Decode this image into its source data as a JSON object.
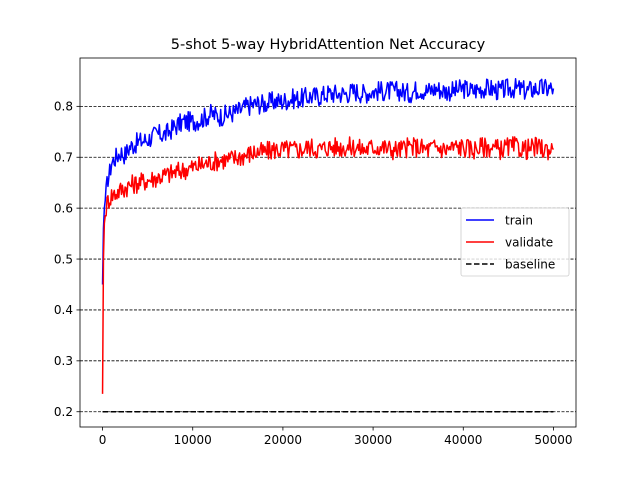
{
  "chart_data": {
    "type": "line",
    "title": "5-shot 5-way HybridAttention Net Accuracy",
    "xlabel": "",
    "ylabel": "",
    "xlim": [
      -2500,
      52500
    ],
    "ylim": [
      0.17,
      0.895
    ],
    "x_ticks": [
      0,
      10000,
      20000,
      30000,
      40000,
      50000
    ],
    "x_tick_labels": [
      "0",
      "10000",
      "20000",
      "30000",
      "40000",
      "50000"
    ],
    "y_ticks": [
      0.2,
      0.3,
      0.4,
      0.5,
      0.6,
      0.7,
      0.8
    ],
    "y_tick_labels": [
      "0.2",
      "0.3",
      "0.4",
      "0.5",
      "0.6",
      "0.7",
      "0.8"
    ],
    "grid": "horizontal dashed lines at y ticks",
    "legend_position": "center-right",
    "series": [
      {
        "name": "train",
        "color": "#0000ff",
        "style": "solid",
        "x": [
          0,
          100,
          200,
          400,
          600,
          800,
          1000,
          1500,
          2000,
          2500,
          3000,
          4000,
          5000,
          6000,
          7000,
          8000,
          9000,
          10000,
          11000,
          12000,
          13000,
          14000,
          15000,
          16000,
          17000,
          18000,
          19000,
          20000,
          21000,
          22000,
          23000,
          24000,
          25000,
          26000,
          27000,
          28000,
          29000,
          30000,
          31000,
          32000,
          33000,
          34000,
          35000,
          36000,
          37000,
          38000,
          39000,
          40000,
          41000,
          42000,
          43000,
          44000,
          45000,
          46000,
          47000,
          48000,
          49000,
          50000
        ],
        "y": [
          0.45,
          0.56,
          0.6,
          0.63,
          0.66,
          0.67,
          0.69,
          0.7,
          0.71,
          0.705,
          0.72,
          0.73,
          0.735,
          0.745,
          0.745,
          0.76,
          0.77,
          0.77,
          0.775,
          0.785,
          0.78,
          0.785,
          0.79,
          0.8,
          0.805,
          0.805,
          0.81,
          0.81,
          0.815,
          0.815,
          0.82,
          0.82,
          0.825,
          0.825,
          0.825,
          0.83,
          0.825,
          0.83,
          0.83,
          0.83,
          0.83,
          0.825,
          0.835,
          0.83,
          0.835,
          0.83,
          0.83,
          0.835,
          0.83,
          0.835,
          0.835,
          0.83,
          0.835,
          0.835,
          0.83,
          0.835,
          0.835,
          0.835
        ]
      },
      {
        "name": "validate",
        "color": "#ff0000",
        "style": "solid",
        "x": [
          0,
          100,
          200,
          400,
          600,
          800,
          1000,
          1500,
          2000,
          2500,
          3000,
          4000,
          5000,
          6000,
          7000,
          8000,
          9000,
          10000,
          11000,
          12000,
          13000,
          14000,
          15000,
          16000,
          17000,
          18000,
          19000,
          20000,
          21000,
          22000,
          23000,
          24000,
          25000,
          26000,
          27000,
          28000,
          29000,
          30000,
          31000,
          32000,
          33000,
          34000,
          35000,
          36000,
          37000,
          38000,
          39000,
          40000,
          41000,
          42000,
          43000,
          44000,
          45000,
          46000,
          47000,
          48000,
          49000,
          50000
        ],
        "y": [
          0.235,
          0.5,
          0.57,
          0.6,
          0.615,
          0.62,
          0.625,
          0.63,
          0.635,
          0.64,
          0.645,
          0.65,
          0.655,
          0.66,
          0.665,
          0.67,
          0.675,
          0.68,
          0.685,
          0.69,
          0.695,
          0.695,
          0.7,
          0.705,
          0.71,
          0.71,
          0.715,
          0.715,
          0.715,
          0.715,
          0.72,
          0.715,
          0.72,
          0.72,
          0.72,
          0.72,
          0.715,
          0.72,
          0.72,
          0.715,
          0.715,
          0.72,
          0.72,
          0.715,
          0.72,
          0.715,
          0.72,
          0.72,
          0.715,
          0.72,
          0.72,
          0.715,
          0.72,
          0.72,
          0.715,
          0.72,
          0.715,
          0.715
        ]
      },
      {
        "name": "baseline",
        "color": "#000000",
        "style": "dashed",
        "x": [
          0,
          50000
        ],
        "y": [
          0.2,
          0.2
        ]
      }
    ]
  }
}
